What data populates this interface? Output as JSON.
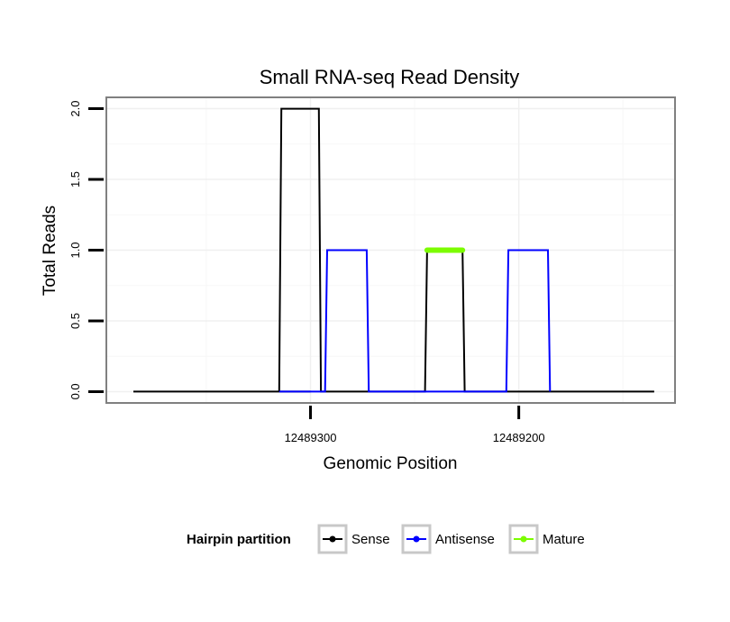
{
  "chart_data": {
    "type": "line",
    "title": "Small RNA-seq Read Density",
    "xlabel": "Genomic Position",
    "ylabel": "Total Reads",
    "x_reversed": true,
    "xlim": [
      12489398,
      12489125
    ],
    "ylim": [
      -0.08,
      2.08
    ],
    "x_ticks": [
      {
        "value": 12489300,
        "label": "12489300"
      },
      {
        "value": 12489200,
        "label": "12489200"
      }
    ],
    "y_ticks": [
      {
        "value": 0.0,
        "label": "0.0"
      },
      {
        "value": 0.5,
        "label": "0.5"
      },
      {
        "value": 1.0,
        "label": "1.0"
      },
      {
        "value": 1.5,
        "label": "1.5"
      },
      {
        "value": 2.0,
        "label": "2.0"
      }
    ],
    "grid": true,
    "legend": {
      "title": "Hairpin partition",
      "position": "bottom"
    },
    "series": [
      {
        "name": "Sense",
        "color": "#000000",
        "x": [
          12489385,
          12489300,
          12489315,
          12489314,
          12489296,
          12489295,
          12489245,
          12489244,
          12489227,
          12489226,
          12489135
        ],
        "y": [
          0,
          0,
          0,
          2,
          2,
          0,
          0,
          1,
          1,
          0,
          0
        ]
      },
      {
        "name": "Antisense",
        "color": "#0000ff",
        "x": [
          12489315,
          12489293,
          12489292,
          12489273,
          12489272,
          12489255,
          12489227,
          12489206,
          12489205,
          12489186,
          12489185
        ],
        "y": [
          0,
          0,
          1,
          1,
          0,
          0,
          0,
          0,
          1,
          1,
          0
        ]
      },
      {
        "name": "Mature",
        "color": "#7cfc00",
        "x": [
          12489244,
          12489227
        ],
        "y": [
          1.0,
          1.0
        ]
      }
    ]
  }
}
